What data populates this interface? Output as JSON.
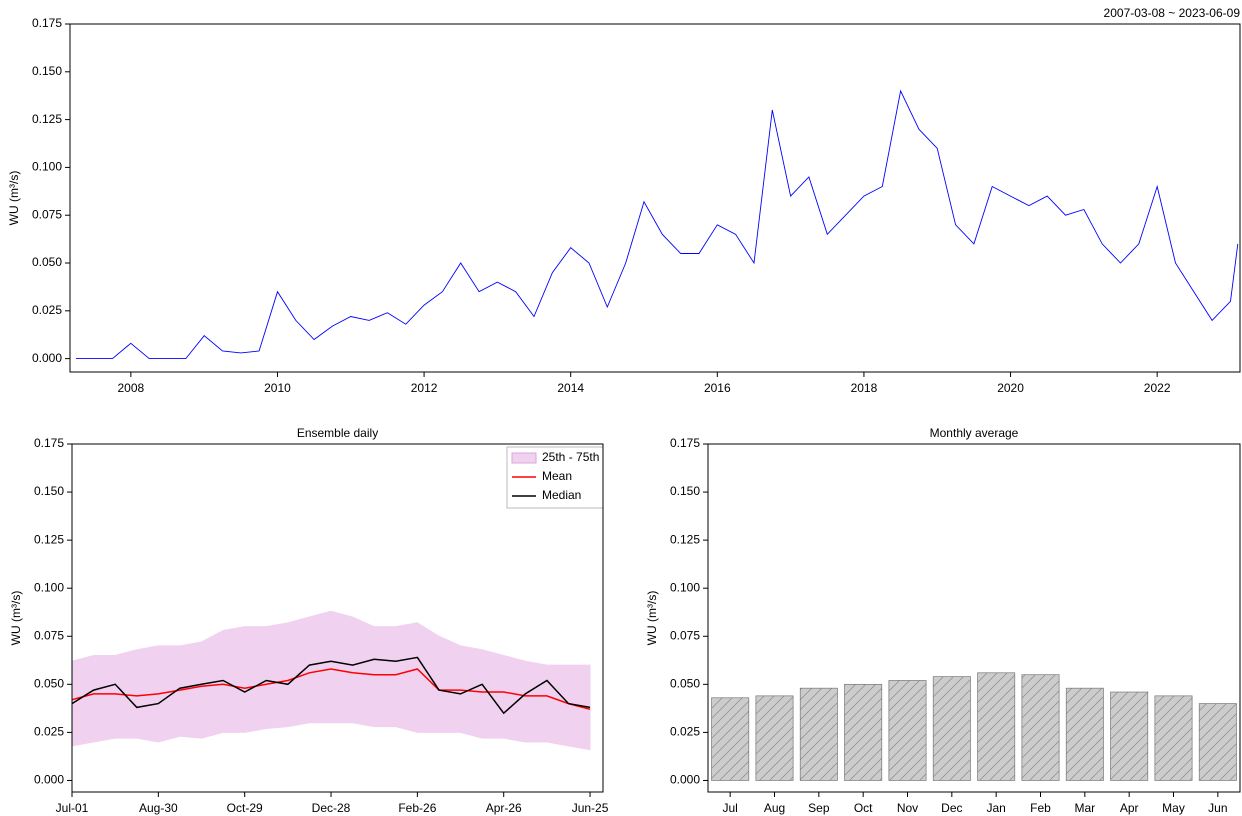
{
  "chart_data": [
    {
      "type": "line",
      "annotation": "2007-03-08 ~ 2023-06-09",
      "y_label": "WU (m³/s)",
      "x": [
        2007.25,
        2007.5,
        2007.75,
        2008.0,
        2008.25,
        2008.5,
        2008.75,
        2009.0,
        2009.25,
        2009.5,
        2009.75,
        2010.0,
        2010.25,
        2010.5,
        2010.75,
        2011.0,
        2011.25,
        2011.5,
        2011.75,
        2012.0,
        2012.25,
        2012.5,
        2012.75,
        2013.0,
        2013.25,
        2013.5,
        2013.75,
        2014.0,
        2014.25,
        2014.5,
        2014.75,
        2015.0,
        2015.25,
        2015.5,
        2015.75,
        2016.0,
        2016.25,
        2016.5,
        2016.75,
        2017.0,
        2017.25,
        2017.5,
        2017.75,
        2018.0,
        2018.25,
        2018.5,
        2018.75,
        2019.0,
        2019.25,
        2019.5,
        2019.75,
        2020.0,
        2020.25,
        2020.5,
        2020.75,
        2021.0,
        2021.25,
        2021.5,
        2021.75,
        2022.0,
        2022.25,
        2022.5,
        2022.75,
        2023.0,
        2023.1
      ],
      "series": [
        {
          "color": "#0000ff",
          "values": [
            0,
            0,
            0,
            0.008,
            0,
            0,
            0,
            0.012,
            0.004,
            0.003,
            0.004,
            0.035,
            0.02,
            0.01,
            0.017,
            0.022,
            0.02,
            0.024,
            0.018,
            0.028,
            0.035,
            0.05,
            0.035,
            0.04,
            0.035,
            0.022,
            0.045,
            0.058,
            0.05,
            0.027,
            0.05,
            0.082,
            0.065,
            0.055,
            0.055,
            0.07,
            0.065,
            0.05,
            0.13,
            0.085,
            0.095,
            0.065,
            0.075,
            0.085,
            0.09,
            0.14,
            0.12,
            0.11,
            0.07,
            0.06,
            0.09,
            0.085,
            0.08,
            0.085,
            0.075,
            0.078,
            0.06,
            0.05,
            0.06,
            0.09,
            0.05,
            0.035,
            0.02,
            0.03,
            0.06
          ]
        }
      ],
      "xlim": [
        2007.17,
        2023.13
      ],
      "xticks": [
        2008,
        2010,
        2012,
        2014,
        2016,
        2018,
        2020,
        2022
      ],
      "ylim": [
        -0.007,
        0.175
      ],
      "yticks": [
        {
          "value": 0,
          "label": "0.000"
        },
        {
          "value": 0.025,
          "label": "0.025"
        },
        {
          "value": 0.05,
          "label": "0.050"
        },
        {
          "value": 0.075,
          "label": "0.075"
        },
        {
          "value": 0.1,
          "label": "0.100"
        },
        {
          "value": 0.125,
          "label": "0.125"
        },
        {
          "value": 0.15,
          "label": "0.150"
        },
        {
          "value": 0.175,
          "label": "0.175"
        }
      ]
    },
    {
      "type": "line",
      "title": "Ensemble daily",
      "y_label": "WU (m³/s)",
      "legend": "upper right",
      "x": [
        0,
        15,
        30,
        45,
        60,
        75,
        90,
        105,
        120,
        135,
        150,
        165,
        180,
        195,
        210,
        225,
        240,
        255,
        270,
        285,
        300,
        315,
        330,
        345,
        360
      ],
      "band": {
        "name": "25th - 75th",
        "color": "#f0d2f0",
        "lower": [
          0.018,
          0.02,
          0.022,
          0.022,
          0.02,
          0.023,
          0.022,
          0.025,
          0.025,
          0.027,
          0.028,
          0.03,
          0.03,
          0.03,
          0.028,
          0.028,
          0.025,
          0.025,
          0.025,
          0.022,
          0.022,
          0.02,
          0.02,
          0.018,
          0.016
        ],
        "upper": [
          0.062,
          0.065,
          0.065,
          0.068,
          0.07,
          0.07,
          0.072,
          0.078,
          0.08,
          0.08,
          0.082,
          0.085,
          0.088,
          0.085,
          0.08,
          0.08,
          0.082,
          0.075,
          0.07,
          0.068,
          0.065,
          0.062,
          0.06,
          0.06,
          0.06
        ]
      },
      "series": [
        {
          "name": "Mean",
          "color": "#ff0000",
          "values": [
            0.042,
            0.045,
            0.045,
            0.044,
            0.045,
            0.047,
            0.049,
            0.05,
            0.048,
            0.05,
            0.052,
            0.056,
            0.058,
            0.056,
            0.055,
            0.055,
            0.058,
            0.047,
            0.047,
            0.046,
            0.046,
            0.044,
            0.044,
            0.04,
            0.037
          ]
        },
        {
          "name": "Median",
          "color": "#000000",
          "values": [
            0.04,
            0.047,
            0.05,
            0.038,
            0.04,
            0.048,
            0.05,
            0.052,
            0.046,
            0.052,
            0.05,
            0.06,
            0.062,
            0.06,
            0.063,
            0.062,
            0.064,
            0.047,
            0.045,
            0.05,
            0.035,
            0.045,
            0.052,
            0.04,
            0.038
          ]
        }
      ],
      "xlim": [
        0,
        369
      ],
      "xticks": [
        {
          "value": 0,
          "label": "Jul-01"
        },
        {
          "value": 60,
          "label": "Aug-30"
        },
        {
          "value": 120,
          "label": "Oct-29"
        },
        {
          "value": 180,
          "label": "Dec-28"
        },
        {
          "value": 240,
          "label": "Feb-26"
        },
        {
          "value": 300,
          "label": "Apr-26"
        },
        {
          "value": 360,
          "label": "Jun-25"
        }
      ],
      "ylim": [
        -0.006,
        0.175
      ],
      "yticks": [
        {
          "value": 0,
          "label": "0.000"
        },
        {
          "value": 0.025,
          "label": "0.025"
        },
        {
          "value": 0.05,
          "label": "0.050"
        },
        {
          "value": 0.075,
          "label": "0.075"
        },
        {
          "value": 0.1,
          "label": "0.100"
        },
        {
          "value": 0.125,
          "label": "0.125"
        },
        {
          "value": 0.15,
          "label": "0.150"
        },
        {
          "value": 0.175,
          "label": "0.175"
        }
      ]
    },
    {
      "type": "bar",
      "title": "Monthly average",
      "y_label": "WU (m³/s)",
      "color": "#cccccc",
      "categories": [
        "Jul",
        "Aug",
        "Sep",
        "Oct",
        "Nov",
        "Dec",
        "Jan",
        "Feb",
        "Mar",
        "Apr",
        "May",
        "Jun"
      ],
      "values": [
        0.043,
        0.044,
        0.048,
        0.05,
        0.052,
        0.054,
        0.056,
        0.055,
        0.048,
        0.046,
        0.044,
        0.04
      ],
      "ylim": [
        -0.006,
        0.175
      ],
      "yticks": [
        {
          "value": 0,
          "label": "0.000"
        },
        {
          "value": 0.025,
          "label": "0.025"
        },
        {
          "value": 0.05,
          "label": "0.050"
        },
        {
          "value": 0.075,
          "label": "0.075"
        },
        {
          "value": 0.1,
          "label": "0.100"
        },
        {
          "value": 0.125,
          "label": "0.125"
        },
        {
          "value": 0.15,
          "label": "0.150"
        },
        {
          "value": 0.175,
          "label": "0.175"
        }
      ]
    }
  ]
}
